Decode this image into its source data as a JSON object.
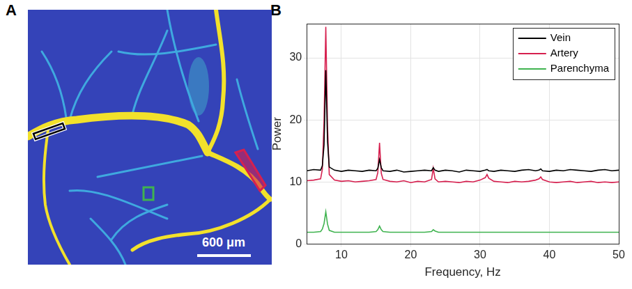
{
  "panel_labels": [
    "A",
    "B"
  ],
  "image": {
    "scale_bar_label": "600 μm"
  },
  "chart_data": {
    "type": "line",
    "x_label": "Frequency, Hz",
    "y_label": "Power",
    "x": [
      5,
      6,
      7,
      7.25,
      7.5,
      7.75,
      8,
      8.25,
      9,
      10,
      11,
      12,
      13,
      14,
      15,
      15.25,
      15.5,
      15.75,
      16,
      17,
      18,
      19,
      20,
      21,
      22,
      23,
      23.25,
      23.5,
      24,
      25,
      26,
      27,
      28,
      29,
      30,
      30.75,
      31,
      31.25,
      32,
      33,
      34,
      35,
      36,
      37,
      38,
      38.5,
      38.75,
      39,
      40,
      41,
      42,
      43,
      44,
      45,
      46,
      47,
      48,
      49,
      50
    ],
    "series": [
      {
        "name": "Vein",
        "color": "#000000",
        "values": [
          11.8,
          12.0,
          11.9,
          12.6,
          16.0,
          28.0,
          16.5,
          12.4,
          11.9,
          11.7,
          11.9,
          11.8,
          11.7,
          11.9,
          11.8,
          12.2,
          13.6,
          12.3,
          11.8,
          11.7,
          11.9,
          11.6,
          11.7,
          11.8,
          11.9,
          11.8,
          12.3,
          11.9,
          11.7,
          11.9,
          11.8,
          11.6,
          11.9,
          11.8,
          11.7,
          11.9,
          12.0,
          11.8,
          11.7,
          11.9,
          11.8,
          11.7,
          11.9,
          12.0,
          11.8,
          11.9,
          12.1,
          11.8,
          11.7,
          11.9,
          11.8,
          12.0,
          11.9,
          11.8,
          11.7,
          11.9,
          12.0,
          11.8,
          11.9
        ]
      },
      {
        "name": "Artery",
        "color": "#d6204f",
        "values": [
          10.2,
          10.3,
          10.5,
          12.0,
          20.0,
          35.0,
          19.0,
          11.2,
          10.3,
          10.1,
          10.2,
          10.0,
          10.1,
          10.2,
          10.4,
          11.5,
          16.3,
          11.4,
          10.4,
          10.1,
          10.0,
          10.2,
          9.9,
          10.1,
          10.0,
          10.4,
          12.2,
          10.5,
          10.0,
          10.1,
          10.0,
          9.9,
          10.1,
          10.0,
          10.3,
          10.7,
          11.2,
          10.6,
          10.1,
          10.0,
          9.9,
          10.1,
          10.0,
          10.1,
          10.3,
          10.5,
          10.8,
          10.4,
          10.0,
          9.9,
          10.0,
          10.1,
          9.9,
          10.0,
          10.1,
          9.9,
          10.0,
          9.9,
          10.0
        ]
      },
      {
        "name": "Parenchyma",
        "color": "#3fb34f",
        "values": [
          1.9,
          1.9,
          2.0,
          2.4,
          3.3,
          5.2,
          3.2,
          2.2,
          1.9,
          1.9,
          1.9,
          1.9,
          1.9,
          1.9,
          2.0,
          2.3,
          2.9,
          2.3,
          2.0,
          1.9,
          1.9,
          1.9,
          1.9,
          1.9,
          1.9,
          2.0,
          2.3,
          2.1,
          1.9,
          1.9,
          1.9,
          1.9,
          1.9,
          1.9,
          1.9,
          1.9,
          1.9,
          1.9,
          1.9,
          1.9,
          1.9,
          1.9,
          1.9,
          1.9,
          1.9,
          1.9,
          1.9,
          1.9,
          1.9,
          1.9,
          1.9,
          1.9,
          1.9,
          1.9,
          1.9,
          1.9,
          1.9,
          1.9,
          1.9
        ]
      }
    ],
    "xlim": [
      5,
      50
    ],
    "xticks": [
      10,
      20,
      30,
      40,
      50
    ],
    "ylim": [
      0,
      35.5
    ],
    "yticks": [
      0,
      10,
      20,
      30
    ],
    "grid": true,
    "legend": "upper right"
  }
}
